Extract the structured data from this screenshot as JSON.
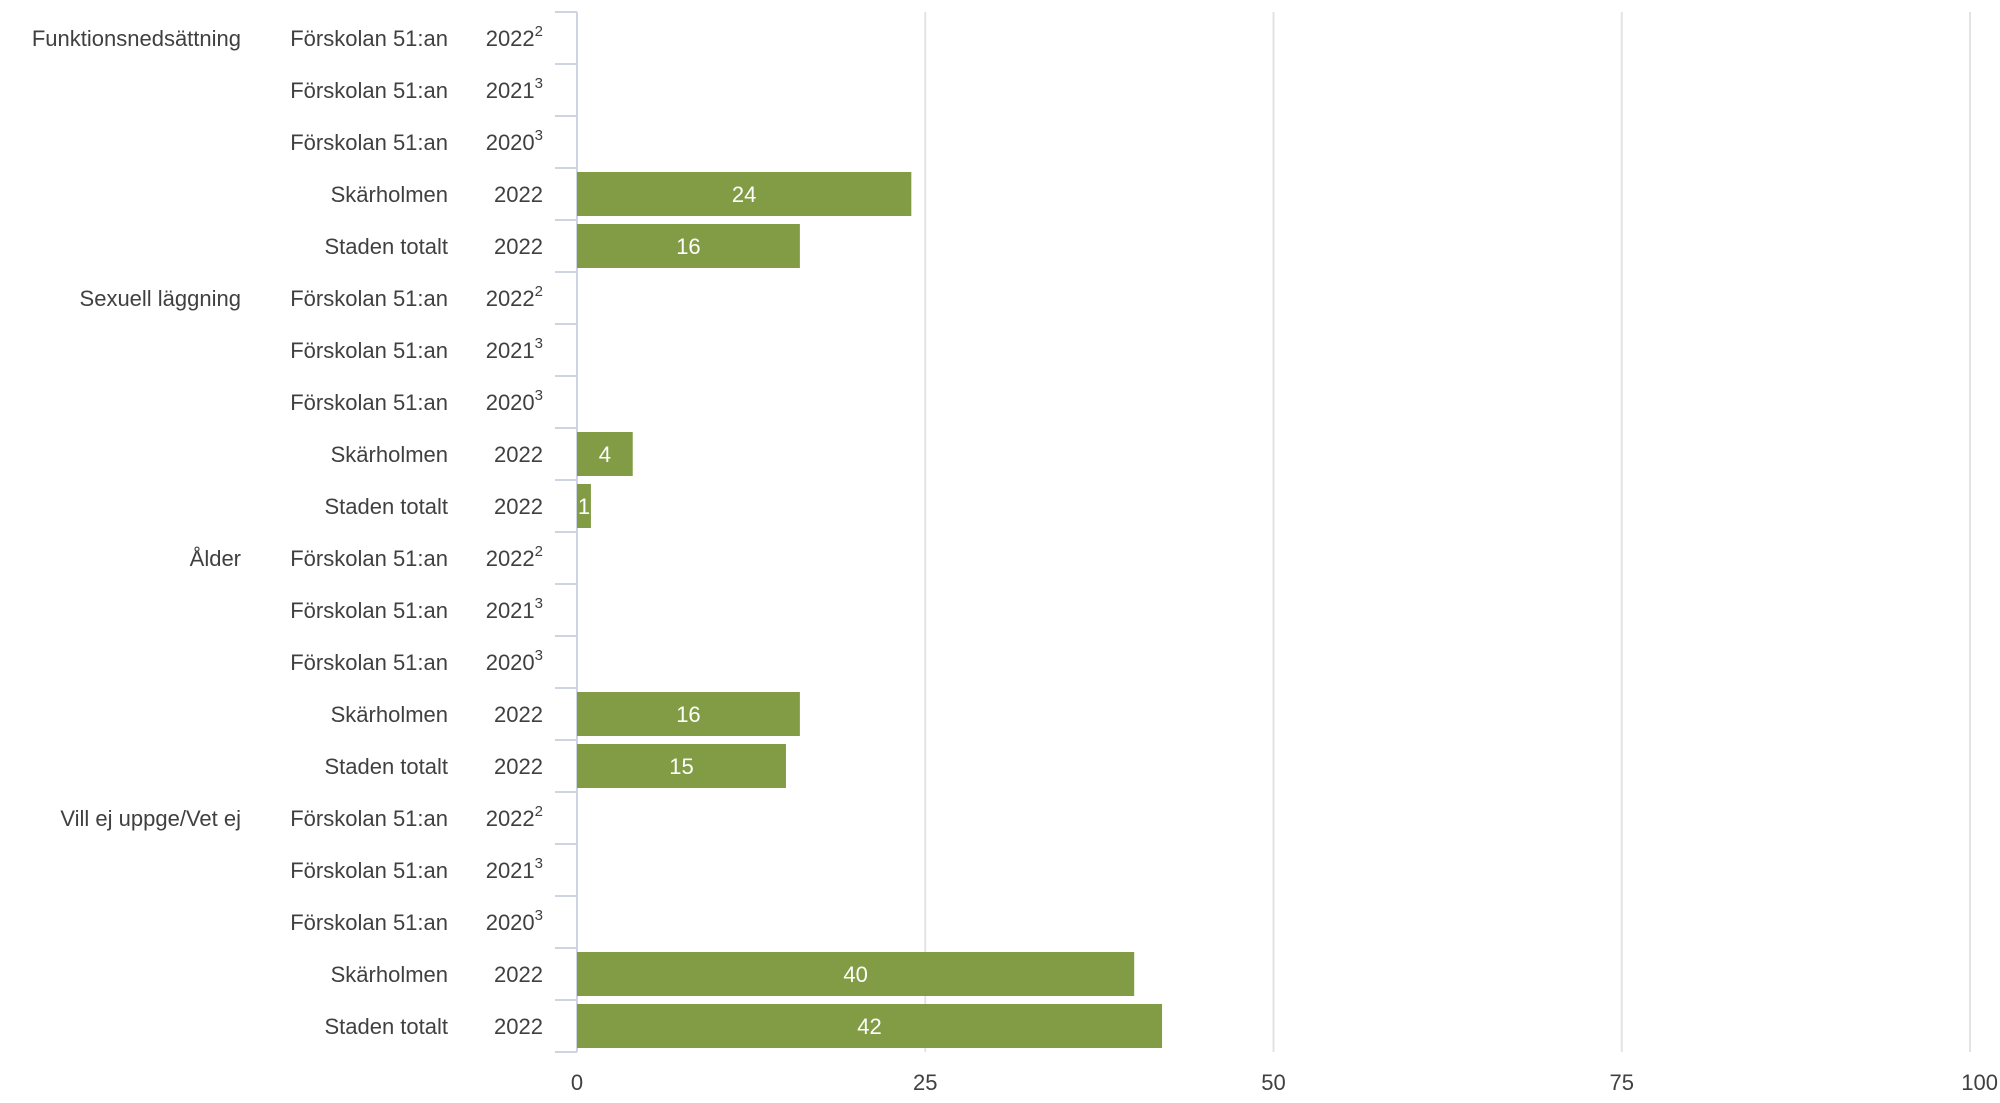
{
  "chart_data": {
    "type": "bar",
    "orientation": "horizontal",
    "xlim": [
      0,
      100
    ],
    "x_ticks": [
      0,
      25,
      50,
      75,
      100
    ],
    "grid": "vertical",
    "bar_color": "#819c45",
    "groups": [
      {
        "label": "Funktionsnedsättning",
        "rows": [
          {
            "org": "Förskolan 51:an",
            "year": "2022",
            "sup": "2",
            "value": null,
            "label": ""
          },
          {
            "org": "Förskolan 51:an",
            "year": "2021",
            "sup": "3",
            "value": null,
            "label": ""
          },
          {
            "org": "Förskolan 51:an",
            "year": "2020",
            "sup": "3",
            "value": null,
            "label": ""
          },
          {
            "org": "Skärholmen",
            "year": "2022",
            "sup": "",
            "value": 24,
            "label": "24"
          },
          {
            "org": "Staden totalt",
            "year": "2022",
            "sup": "",
            "value": 16,
            "label": "16"
          }
        ]
      },
      {
        "label": "Sexuell läggning",
        "rows": [
          {
            "org": "Förskolan 51:an",
            "year": "2022",
            "sup": "2",
            "value": null,
            "label": ""
          },
          {
            "org": "Förskolan 51:an",
            "year": "2021",
            "sup": "3",
            "value": null,
            "label": ""
          },
          {
            "org": "Förskolan 51:an",
            "year": "2020",
            "sup": "3",
            "value": null,
            "label": ""
          },
          {
            "org": "Skärholmen",
            "year": "2022",
            "sup": "",
            "value": 4,
            "label": "4"
          },
          {
            "org": "Staden totalt",
            "year": "2022",
            "sup": "",
            "value": 1,
            "label": "1"
          }
        ]
      },
      {
        "label": "Ålder",
        "rows": [
          {
            "org": "Förskolan 51:an",
            "year": "2022",
            "sup": "2",
            "value": null,
            "label": ""
          },
          {
            "org": "Förskolan 51:an",
            "year": "2021",
            "sup": "3",
            "value": null,
            "label": ""
          },
          {
            "org": "Förskolan 51:an",
            "year": "2020",
            "sup": "3",
            "value": null,
            "label": ""
          },
          {
            "org": "Skärholmen",
            "year": "2022",
            "sup": "",
            "value": 16,
            "label": "16"
          },
          {
            "org": "Staden totalt",
            "year": "2022",
            "sup": "",
            "value": 15,
            "label": "15"
          }
        ]
      },
      {
        "label": "Vill ej uppge/Vet ej",
        "rows": [
          {
            "org": "Förskolan 51:an",
            "year": "2022",
            "sup": "2",
            "value": null,
            "label": ""
          },
          {
            "org": "Förskolan 51:an",
            "year": "2021",
            "sup": "3",
            "value": null,
            "label": ""
          },
          {
            "org": "Förskolan 51:an",
            "year": "2020",
            "sup": "3",
            "value": null,
            "label": ""
          },
          {
            "org": "Skärholmen",
            "year": "2022",
            "sup": "",
            "value": 40,
            "label": "40"
          },
          {
            "org": "Staden totalt",
            "year": "2022",
            "sup": "",
            "value": 42,
            "label": "42"
          }
        ]
      }
    ]
  }
}
